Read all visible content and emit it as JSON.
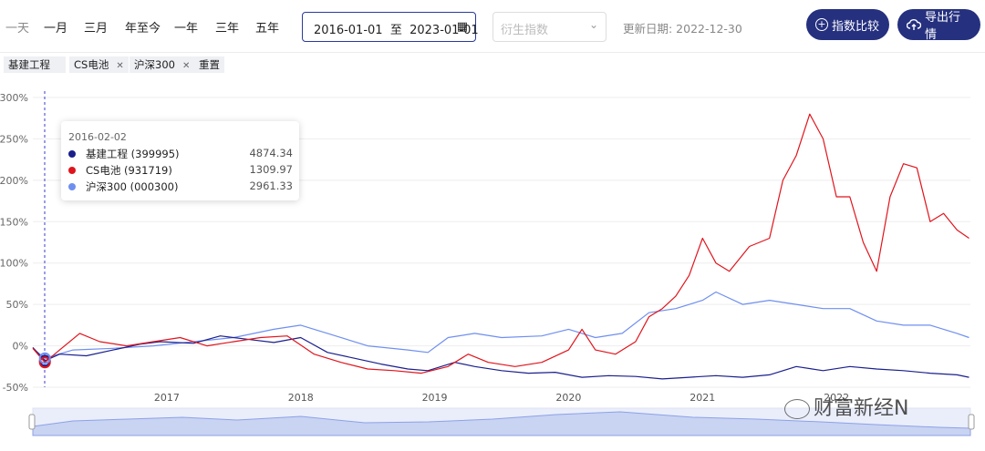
{
  "toolbar": {
    "ranges": [
      {
        "label": "一天",
        "muted": true
      },
      {
        "label": "一月",
        "muted": false
      },
      {
        "label": "三月",
        "muted": false
      },
      {
        "label": "年至今",
        "muted": false
      },
      {
        "label": "一年",
        "muted": false
      },
      {
        "label": "三年",
        "muted": false
      },
      {
        "label": "五年",
        "muted": false
      }
    ],
    "date_start": "2016-01-01",
    "date_sep": "至",
    "date_end": "2023-01-01",
    "derived_placeholder": "衍生指数",
    "update_label": "更新日期: 2022-12-30",
    "compare_label": "指数比较",
    "export_label": "导出行情"
  },
  "tags": [
    {
      "label": "基建工程",
      "removable": false
    },
    {
      "label": "CS电池",
      "removable": true
    },
    {
      "label": "沪深300",
      "removable": true
    },
    {
      "label": "重置",
      "removable": false
    }
  ],
  "tooltip": {
    "date": "2016-02-02",
    "rows": [
      {
        "name": "基建工程 (399995)",
        "value": "4874.34",
        "color": "#1a1f8c"
      },
      {
        "name": "CS电池 (931719)",
        "value": "1309.97",
        "color": "#e0141c"
      },
      {
        "name": "沪深300 (000300)",
        "value": "2961.33",
        "color": "#6f8ff0"
      }
    ]
  },
  "watermark": "财富新经N",
  "chart_data": {
    "type": "line",
    "ylim": [
      -50,
      300
    ],
    "yticks": [
      -50,
      0,
      50,
      100,
      150,
      200,
      250,
      300
    ],
    "ytick_labels": [
      "-50%",
      "0%",
      "50%",
      "100%",
      "150%",
      "200%",
      "250%",
      "300%"
    ],
    "xlim": [
      2016.0,
      2023.0
    ],
    "xticks": [
      2017,
      2018,
      2019,
      2020,
      2021,
      2022
    ],
    "xtick_labels": [
      "2017",
      "2018",
      "2019",
      "2020",
      "2021",
      "2022"
    ],
    "grid": true,
    "series": [
      {
        "name": "基建工程",
        "color": "#1a1f8c",
        "x": [
          2016.0,
          2016.09,
          2016.2,
          2016.4,
          2016.6,
          2016.8,
          2016.95,
          2017.2,
          2017.4,
          2017.6,
          2017.8,
          2018.0,
          2018.2,
          2018.4,
          2018.6,
          2018.8,
          2018.95,
          2019.15,
          2019.3,
          2019.5,
          2019.7,
          2019.9,
          2020.1,
          2020.3,
          2020.5,
          2020.7,
          2020.9,
          2021.1,
          2021.3,
          2021.5,
          2021.7,
          2021.9,
          2022.1,
          2022.3,
          2022.5,
          2022.7,
          2022.9,
          2022.99
        ],
        "y": [
          -2,
          -18,
          -10,
          -12,
          -5,
          2,
          5,
          3,
          12,
          8,
          4,
          10,
          -8,
          -15,
          -22,
          -28,
          -30,
          -20,
          -25,
          -30,
          -33,
          -32,
          -38,
          -36,
          -37,
          -40,
          -38,
          -36,
          -38,
          -35,
          -25,
          -30,
          -25,
          -28,
          -30,
          -33,
          -35,
          -38
        ]
      },
      {
        "name": "CS电池",
        "color": "#e0141c",
        "x": [
          2016.0,
          2016.09,
          2016.2,
          2016.35,
          2016.5,
          2016.7,
          2016.9,
          2017.1,
          2017.3,
          2017.5,
          2017.7,
          2017.9,
          2018.1,
          2018.3,
          2018.5,
          2018.7,
          2018.9,
          2019.1,
          2019.25,
          2019.4,
          2019.6,
          2019.8,
          2020.0,
          2020.1,
          2020.2,
          2020.35,
          2020.5,
          2020.6,
          2020.7,
          2020.8,
          2020.9,
          2021.0,
          2021.1,
          2021.2,
          2021.35,
          2021.5,
          2021.6,
          2021.7,
          2021.8,
          2021.9,
          2022.0,
          2022.1,
          2022.2,
          2022.3,
          2022.4,
          2022.5,
          2022.6,
          2022.7,
          2022.8,
          2022.9,
          2022.99
        ],
        "y": [
          -3,
          -20,
          -5,
          15,
          5,
          0,
          5,
          10,
          0,
          5,
          10,
          12,
          -10,
          -20,
          -28,
          -30,
          -33,
          -25,
          -10,
          -20,
          -25,
          -20,
          -5,
          20,
          -5,
          -10,
          5,
          35,
          45,
          60,
          85,
          130,
          100,
          90,
          120,
          130,
          200,
          230,
          280,
          250,
          180,
          180,
          125,
          90,
          180,
          220,
          215,
          150,
          160,
          140,
          130
        ]
      },
      {
        "name": "沪深300",
        "color": "#6f8ff0",
        "x": [
          2016.0,
          2016.09,
          2016.3,
          2016.6,
          2016.9,
          2017.2,
          2017.5,
          2017.8,
          2018.0,
          2018.2,
          2018.5,
          2018.8,
          2018.95,
          2019.1,
          2019.3,
          2019.5,
          2019.8,
          2020.0,
          2020.2,
          2020.4,
          2020.6,
          2020.8,
          2021.0,
          2021.1,
          2021.3,
          2021.5,
          2021.7,
          2021.9,
          2022.1,
          2022.3,
          2022.5,
          2022.7,
          2022.9,
          2022.99
        ],
        "y": [
          -3,
          -15,
          -5,
          -3,
          0,
          5,
          10,
          20,
          25,
          15,
          0,
          -5,
          -8,
          10,
          15,
          10,
          12,
          20,
          10,
          15,
          40,
          45,
          55,
          65,
          50,
          55,
          50,
          45,
          45,
          30,
          25,
          25,
          15,
          10
        ]
      }
    ]
  }
}
